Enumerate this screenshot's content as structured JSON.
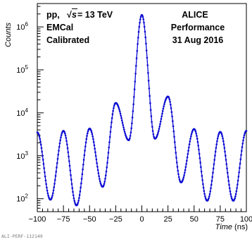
{
  "chart_data": {
    "type": "line",
    "title": "",
    "xlabel": "Time (ns)",
    "ylabel": "Counts",
    "xlim": [
      -100,
      100
    ],
    "ylim": [
      50,
      3500000
    ],
    "yscale": "log",
    "grid": false,
    "annotations": {
      "system": "pp,",
      "energy_prefix": "√",
      "energy_var": "s",
      "energy_value": " = 13 TeV",
      "detector": "EMCal",
      "status": "Calibrated",
      "collab": "ALICE",
      "performance": "Performance",
      "date": "31 Aug 2016",
      "footer": "ALI-PERF-112149"
    },
    "x_ticks": [
      {
        "v": -100,
        "label": "−100"
      },
      {
        "v": -75,
        "label": "−75"
      },
      {
        "v": -50,
        "label": "−50"
      },
      {
        "v": -25,
        "label": "−25"
      },
      {
        "v": 0,
        "label": "0"
      },
      {
        "v": 25,
        "label": "25"
      },
      {
        "v": 50,
        "label": "50"
      },
      {
        "v": 75,
        "label": "75"
      },
      {
        "v": 100,
        "label": "100"
      }
    ],
    "y_ticks": [
      {
        "exp": 2,
        "base": "10",
        "sup": "2"
      },
      {
        "exp": 3,
        "base": "10",
        "sup": "3"
      },
      {
        "exp": 4,
        "base": "10",
        "sup": "4"
      },
      {
        "exp": 5,
        "base": "10",
        "sup": "5"
      },
      {
        "exp": 6,
        "base": "10",
        "sup": "6"
      }
    ],
    "series": [
      {
        "color": "#0a0ad2",
        "peaks": [
          {
            "t": -100,
            "v": 3500
          },
          {
            "t": -75,
            "v": 3800
          },
          {
            "t": -50,
            "v": 4300
          },
          {
            "t": -25,
            "v": 17000
          },
          {
            "t": 0,
            "v": 1900000
          },
          {
            "t": 25,
            "v": 24000
          },
          {
            "t": 50,
            "v": 4200
          },
          {
            "t": 75,
            "v": 3600
          },
          {
            "t": 100,
            "v": 3800
          }
        ],
        "valleys": [
          {
            "t": -87.5,
            "v": 95
          },
          {
            "t": -62.5,
            "v": 70
          },
          {
            "t": -37.5,
            "v": 190
          },
          {
            "t": -12.5,
            "v": 2300
          },
          {
            "t": 12.5,
            "v": 2500
          },
          {
            "t": 37.5,
            "v": 240
          },
          {
            "t": 62.5,
            "v": 90
          },
          {
            "t": 87.5,
            "v": 90
          }
        ]
      }
    ]
  },
  "colors": {
    "axis": "#000000",
    "series": "#0a0ad2",
    "footer": "#7a7a7a"
  }
}
